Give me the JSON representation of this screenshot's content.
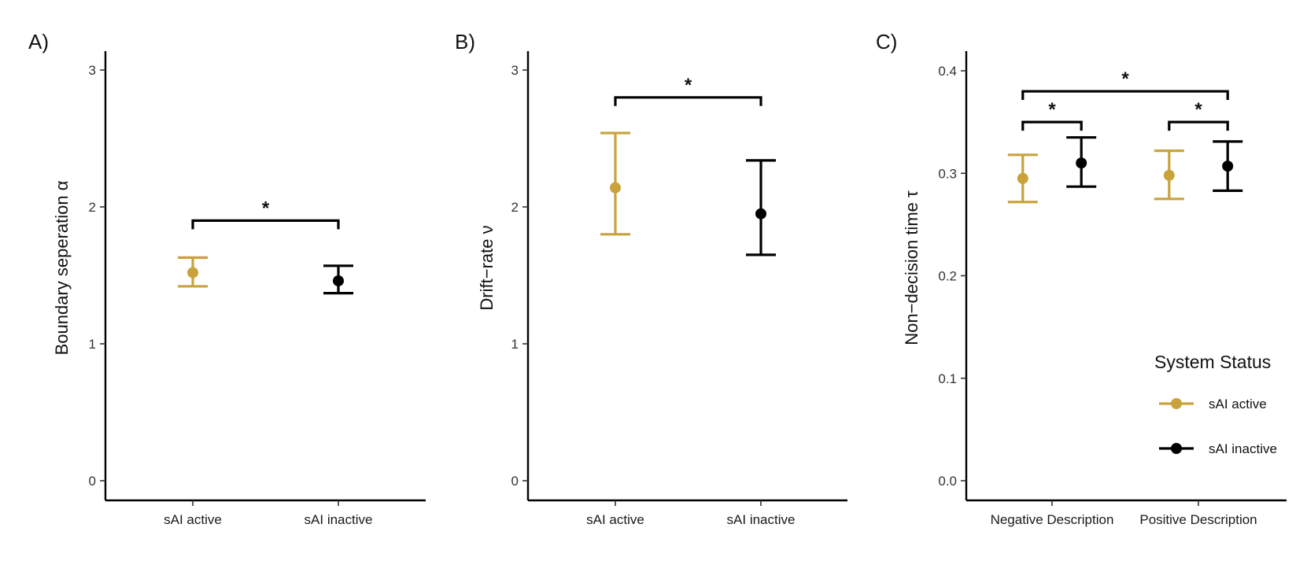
{
  "colors": {
    "active": "#C9A23C",
    "inactive": "#000000"
  },
  "legend": {
    "title": "System Status",
    "items": [
      {
        "label": "sAI active",
        "color_key": "active"
      },
      {
        "label": "sAI inactive",
        "color_key": "inactive"
      }
    ]
  },
  "chart_data": [
    {
      "type": "errorbar",
      "panel": "A)",
      "ylabel": "Boundary seperation",
      "ylabel_symbol": "α",
      "ylim": [
        -0.15,
        3.15
      ],
      "yticks": [
        0,
        1,
        2,
        3
      ],
      "ytick_labels": [
        "0",
        "1",
        "2",
        "3"
      ],
      "categories": [
        "sAI active",
        "sAI inactive"
      ],
      "points": [
        {
          "category": "sAI active",
          "group": "active",
          "mean": 1.52,
          "lower": 1.42,
          "upper": 1.63
        },
        {
          "category": "sAI inactive",
          "group": "inactive",
          "mean": 1.46,
          "lower": 1.37,
          "upper": 1.57
        }
      ],
      "brackets": [
        {
          "from": "sAI active",
          "to": "sAI inactive",
          "y": 1.9,
          "label": "*"
        }
      ]
    },
    {
      "type": "errorbar",
      "panel": "B)",
      "ylabel": "Drift−rate",
      "ylabel_symbol": "ν",
      "ylim": [
        -0.15,
        3.15
      ],
      "yticks": [
        0,
        1,
        2,
        3
      ],
      "ytick_labels": [
        "0",
        "1",
        "2",
        "3"
      ],
      "categories": [
        "sAI active",
        "sAI inactive"
      ],
      "points": [
        {
          "category": "sAI active",
          "group": "active",
          "mean": 2.14,
          "lower": 1.8,
          "upper": 2.54
        },
        {
          "category": "sAI inactive",
          "group": "inactive",
          "mean": 1.95,
          "lower": 1.65,
          "upper": 2.34
        }
      ],
      "brackets": [
        {
          "from": "sAI active",
          "to": "sAI inactive",
          "y": 2.8,
          "label": "*"
        }
      ]
    },
    {
      "type": "errorbar",
      "panel": "C)",
      "ylabel": "Non−decision time",
      "ylabel_symbol": "τ",
      "ylim": [
        -0.02,
        0.42
      ],
      "yticks": [
        0.0,
        0.1,
        0.2,
        0.3,
        0.4
      ],
      "ytick_labels": [
        "0.0",
        "0.1",
        "0.2",
        "0.3",
        "0.4"
      ],
      "categories": [
        "Negative Description",
        "Positive Description"
      ],
      "dodge": 0.2,
      "points": [
        {
          "category": "Negative Description",
          "group": "active",
          "mean": 0.295,
          "lower": 0.272,
          "upper": 0.318
        },
        {
          "category": "Negative Description",
          "group": "inactive",
          "mean": 0.31,
          "lower": 0.287,
          "upper": 0.335
        },
        {
          "category": "Positive Description",
          "group": "active",
          "mean": 0.298,
          "lower": 0.275,
          "upper": 0.322
        },
        {
          "category": "Positive Description",
          "group": "inactive",
          "mean": 0.307,
          "lower": 0.283,
          "upper": 0.331
        }
      ],
      "brackets": [
        {
          "from": "Negative Description",
          "from_group": "active",
          "to": "Negative Description",
          "to_group": "inactive",
          "y": 0.35,
          "label": "*"
        },
        {
          "from": "Positive Description",
          "from_group": "active",
          "to": "Positive Description",
          "to_group": "inactive",
          "y": 0.35,
          "label": "*"
        },
        {
          "from": "Negative Description",
          "from_group": "active",
          "to": "Positive Description",
          "to_group": "inactive",
          "y": 0.38,
          "label": "*"
        }
      ]
    }
  ]
}
